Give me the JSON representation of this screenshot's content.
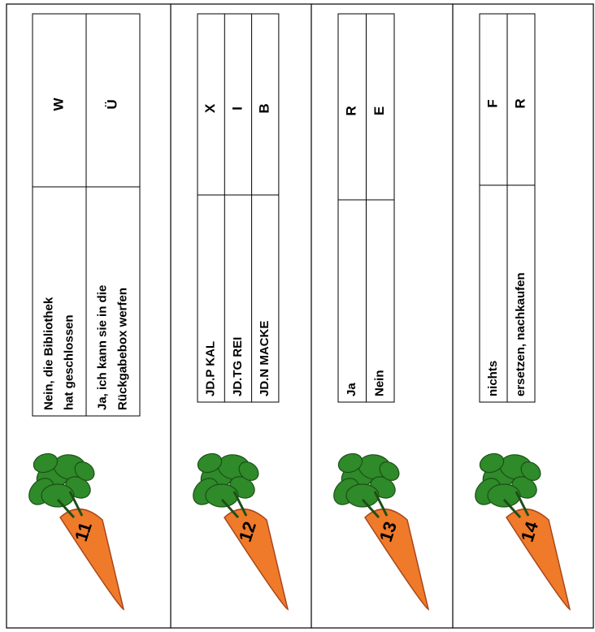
{
  "panels": [
    {
      "number": "11",
      "rows": [
        {
          "answer": [
            "Nein, die Bibliothek",
            "hat geschlossen"
          ],
          "letter": "W"
        },
        {
          "answer": [
            "Ja, ich kann sie in die",
            "Rückgabebox werfen"
          ],
          "letter": "Ü"
        }
      ]
    },
    {
      "number": "12",
      "rows": [
        {
          "answer": [
            "JD.P KAL"
          ],
          "letter": "X"
        },
        {
          "answer": [
            "JD.TG REI"
          ],
          "letter": "I"
        },
        {
          "answer": [
            "JD.N MACKE"
          ],
          "letter": "B"
        }
      ]
    },
    {
      "number": "13",
      "rows": [
        {
          "answer": [
            "Ja"
          ],
          "letter": "R"
        },
        {
          "answer": [
            "Nein"
          ],
          "letter": "E"
        }
      ]
    },
    {
      "number": "14",
      "rows": [
        {
          "answer": [
            "nichts"
          ],
          "letter": "F"
        },
        {
          "answer": [
            "ersetzen, nachkaufen"
          ],
          "letter": "R"
        }
      ]
    }
  ]
}
